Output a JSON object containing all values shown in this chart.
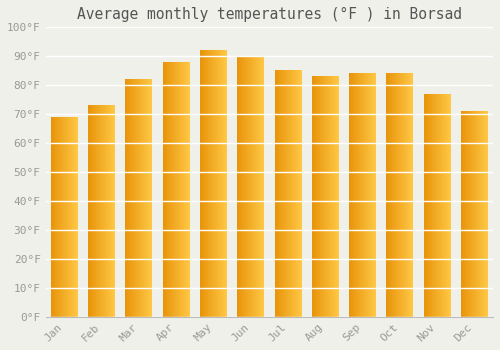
{
  "title": "Average monthly temperatures (°F ) in Borsad",
  "months": [
    "Jan",
    "Feb",
    "Mar",
    "Apr",
    "May",
    "Jun",
    "Jul",
    "Aug",
    "Sep",
    "Oct",
    "Nov",
    "Dec"
  ],
  "values": [
    69,
    73,
    82,
    88,
    92,
    90,
    85,
    83,
    84,
    84,
    77,
    71
  ],
  "bar_color_left": "#E8940A",
  "bar_color_right": "#FFC845",
  "ylim": [
    0,
    100
  ],
  "yticks": [
    0,
    10,
    20,
    30,
    40,
    50,
    60,
    70,
    80,
    90,
    100
  ],
  "ytick_labels": [
    "0°F",
    "10°F",
    "20°F",
    "30°F",
    "40°F",
    "50°F",
    "60°F",
    "70°F",
    "80°F",
    "90°F",
    "100°F"
  ],
  "background_color": "#F0F0EB",
  "grid_color": "#FFFFFF",
  "font_family": "monospace",
  "title_fontsize": 10.5,
  "tick_fontsize": 8,
  "tick_color": "#999999",
  "title_color": "#555555",
  "bar_width": 0.72
}
